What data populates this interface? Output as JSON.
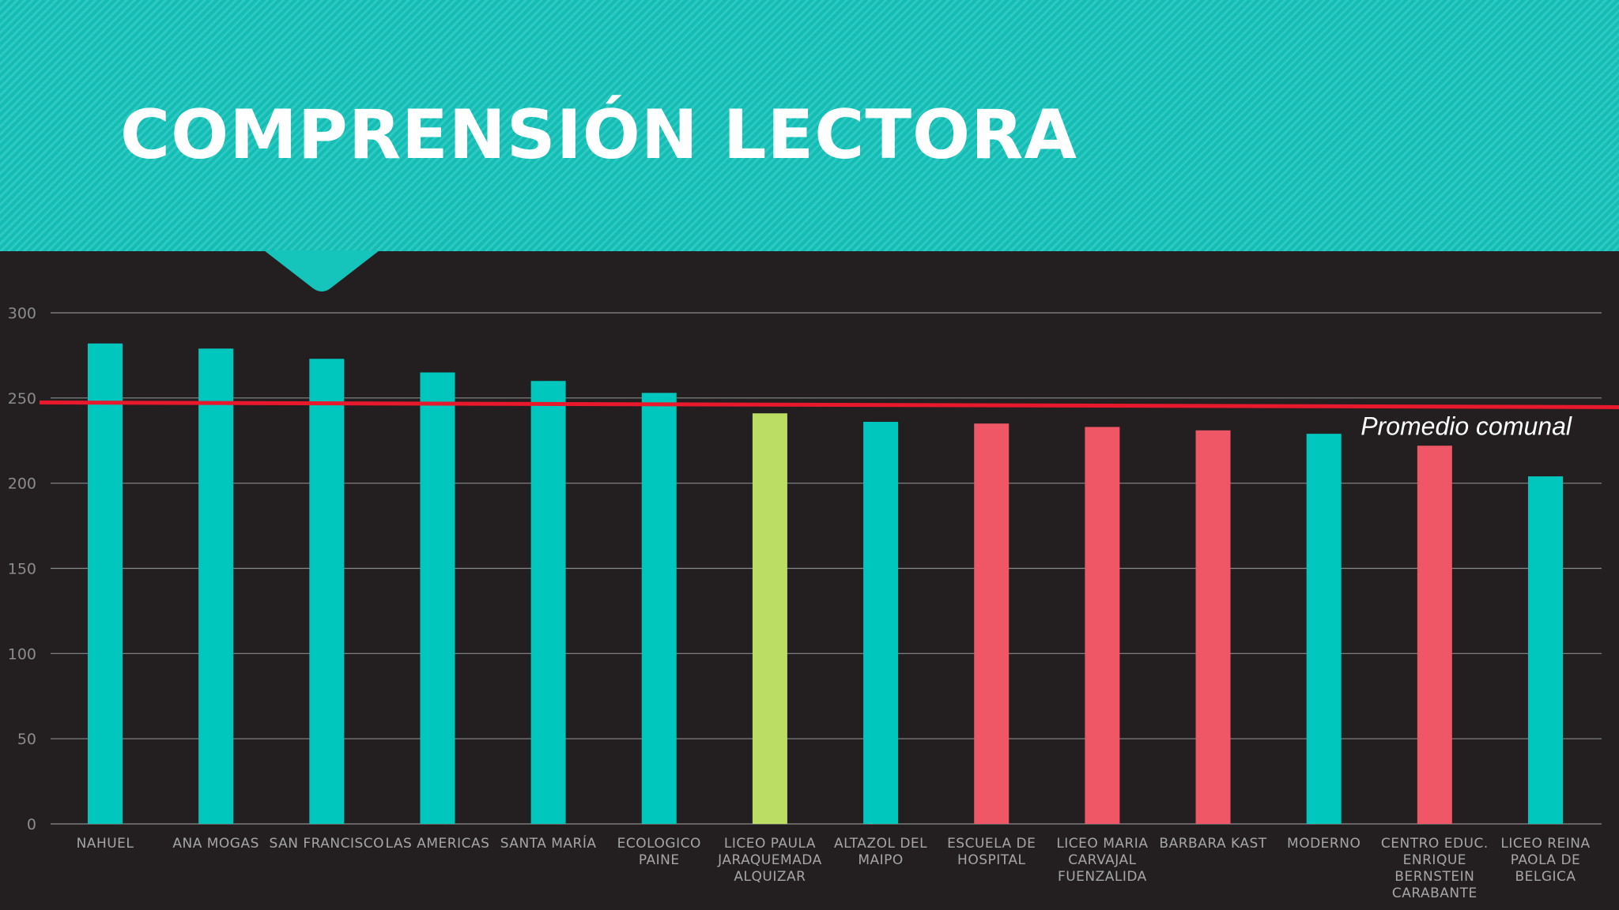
{
  "slide": {
    "title": "COMPRENSIÓN LECTORA"
  },
  "colors": {
    "background": "#231f20",
    "header": "#15c4bb",
    "teal_bar": "#00c7bd",
    "red_bar": "#ef5766",
    "green_bar": "#bcdd64",
    "reference_line": "#e8192c",
    "gridline": "#8a8a8a"
  },
  "chart_data": {
    "type": "bar",
    "title": "COMPRENSIÓN LECTORA",
    "xlabel": "",
    "ylabel": "",
    "ylim": [
      0,
      300
    ],
    "yticks": [
      0,
      50,
      100,
      150,
      200,
      250,
      300
    ],
    "grid": true,
    "categories": [
      "NAHUEL",
      "ANA MOGAS",
      "SAN FRANCISCO",
      "LAS AMERICAS",
      "SANTA MARÍA",
      "ECOLOGICO PAINE",
      "LICEO PAULA JARAQUEMADA ALQUIZAR",
      "ALTAZOL DEL MAIPO",
      "ESCUELA DE HOSPITAL",
      "LICEO MARIA CARVAJAL FUENZALIDA",
      "BARBARA KAST",
      "MODERNO",
      "CENTRO EDUC. ENRIQUE BERNSTEIN CARABANTE",
      "LICEO REINA PAOLA DE BELGICA"
    ],
    "category_lines": [
      [
        "NAHUEL"
      ],
      [
        "ANA MOGAS"
      ],
      [
        "SAN FRANCISCO"
      ],
      [
        "LAS AMERICAS"
      ],
      [
        "SANTA MARÍA"
      ],
      [
        "ECOLOGICO",
        "PAINE"
      ],
      [
        "LICEO PAULA",
        "JARAQUEMADA",
        "ALQUIZAR"
      ],
      [
        "ALTAZOL DEL",
        "MAIPO"
      ],
      [
        "ESCUELA DE",
        "HOSPITAL"
      ],
      [
        "LICEO MARIA",
        "CARVAJAL",
        "FUENZALIDA"
      ],
      [
        "BARBARA KAST"
      ],
      [
        "MODERNO"
      ],
      [
        "CENTRO EDUC.",
        "ENRIQUE",
        "BERNSTEIN",
        "CARABANTE"
      ],
      [
        "LICEO REINA",
        "PAOLA DE",
        "BELGICA"
      ]
    ],
    "values": [
      282,
      279,
      273,
      265,
      260,
      253,
      241,
      236,
      235,
      233,
      231,
      229,
      222,
      204
    ],
    "bar_colors": [
      "teal",
      "teal",
      "teal",
      "teal",
      "teal",
      "teal",
      "green",
      "teal",
      "red",
      "red",
      "red",
      "teal",
      "red",
      "teal"
    ],
    "reference_line": {
      "label": "Promedio comunal",
      "value": 246
    }
  }
}
